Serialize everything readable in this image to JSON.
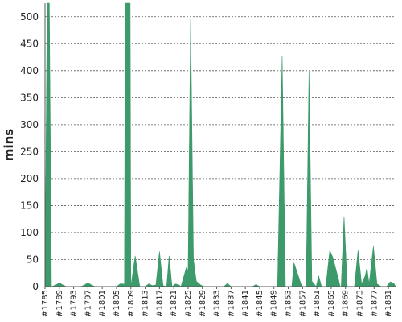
{
  "chart_data": {
    "type": "area",
    "title": "",
    "ylabel": "mins",
    "xlabel": "",
    "ylim": [
      0,
      525
    ],
    "yticks": [
      0,
      50,
      100,
      150,
      200,
      250,
      300,
      350,
      400,
      450,
      500
    ],
    "grid": "horizontal dashed",
    "legend": "none",
    "color": "#3d9a6a",
    "x_tick_labels": [
      "#1785",
      "#1789",
      "#1793",
      "#1797",
      "#1801",
      "#1805",
      "#1809",
      "#1813",
      "#1817",
      "#1821",
      "#1825",
      "#1829",
      "#1833",
      "#1837",
      "#1841",
      "#1845",
      "#1849",
      "#1853",
      "#1857",
      "#1861",
      "#1865",
      "#1869",
      "#1873",
      "#1877",
      "#1881"
    ],
    "x_start": 1785,
    "x_end": 1883,
    "series": [
      {
        "values": [
          [
            1785,
            0
          ],
          [
            1785.6,
            525
          ],
          [
            1786.2,
            525
          ],
          [
            1786.8,
            0
          ],
          [
            1788,
            3
          ],
          [
            1789,
            7
          ],
          [
            1790,
            3
          ],
          [
            1791,
            0
          ],
          [
            1795,
            0
          ],
          [
            1796,
            3
          ],
          [
            1797,
            7
          ],
          [
            1798,
            3
          ],
          [
            1799,
            0
          ],
          [
            1805,
            0
          ],
          [
            1806,
            5
          ],
          [
            1807,
            5
          ],
          [
            1807.2,
            0
          ],
          [
            1807.4,
            525
          ],
          [
            1808.8,
            525
          ],
          [
            1809,
            0
          ],
          [
            1810.2,
            57
          ],
          [
            1811.5,
            0
          ],
          [
            1813,
            0
          ],
          [
            1814,
            5
          ],
          [
            1815,
            2
          ],
          [
            1816,
            3
          ],
          [
            1817,
            65
          ],
          [
            1818,
            2
          ],
          [
            1819,
            0
          ],
          [
            1819.7,
            57
          ],
          [
            1820.5,
            0
          ],
          [
            1821.5,
            5
          ],
          [
            1822.5,
            3
          ],
          [
            1823,
            0
          ],
          [
            1824.5,
            35
          ],
          [
            1825,
            30
          ],
          [
            1825.7,
            497
          ],
          [
            1826.5,
            50
          ],
          [
            1827.3,
            10
          ],
          [
            1828.5,
            3
          ],
          [
            1829.5,
            0
          ],
          [
            1835,
            0
          ],
          [
            1836,
            6
          ],
          [
            1837,
            0
          ],
          [
            1843,
            0
          ],
          [
            1844,
            4
          ],
          [
            1845,
            0
          ],
          [
            1850,
            0
          ],
          [
            1851.3,
            428
          ],
          [
            1852.2,
            0
          ],
          [
            1854,
            0
          ],
          [
            1854.6,
            44
          ],
          [
            1855.7,
            22
          ],
          [
            1856.8,
            0
          ],
          [
            1858,
            0
          ],
          [
            1858.8,
            400
          ],
          [
            1859.6,
            10
          ],
          [
            1860.8,
            0
          ],
          [
            1861.5,
            20
          ],
          [
            1862.3,
            0
          ],
          [
            1863.5,
            0
          ],
          [
            1864.6,
            67
          ],
          [
            1865.4,
            55
          ],
          [
            1867,
            15
          ],
          [
            1867.5,
            0
          ],
          [
            1867.8,
            0
          ],
          [
            1868.6,
            130
          ],
          [
            1869.5,
            0
          ],
          [
            1871.5,
            0
          ],
          [
            1872.5,
            67
          ],
          [
            1873.5,
            5
          ],
          [
            1874.5,
            20
          ],
          [
            1875,
            35
          ],
          [
            1875.6,
            5
          ],
          [
            1876.8,
            75
          ],
          [
            1877.8,
            5
          ],
          [
            1879,
            0
          ],
          [
            1880.5,
            0
          ],
          [
            1881.5,
            9
          ],
          [
            1882.5,
            6
          ],
          [
            1883,
            0
          ]
        ]
      }
    ]
  }
}
